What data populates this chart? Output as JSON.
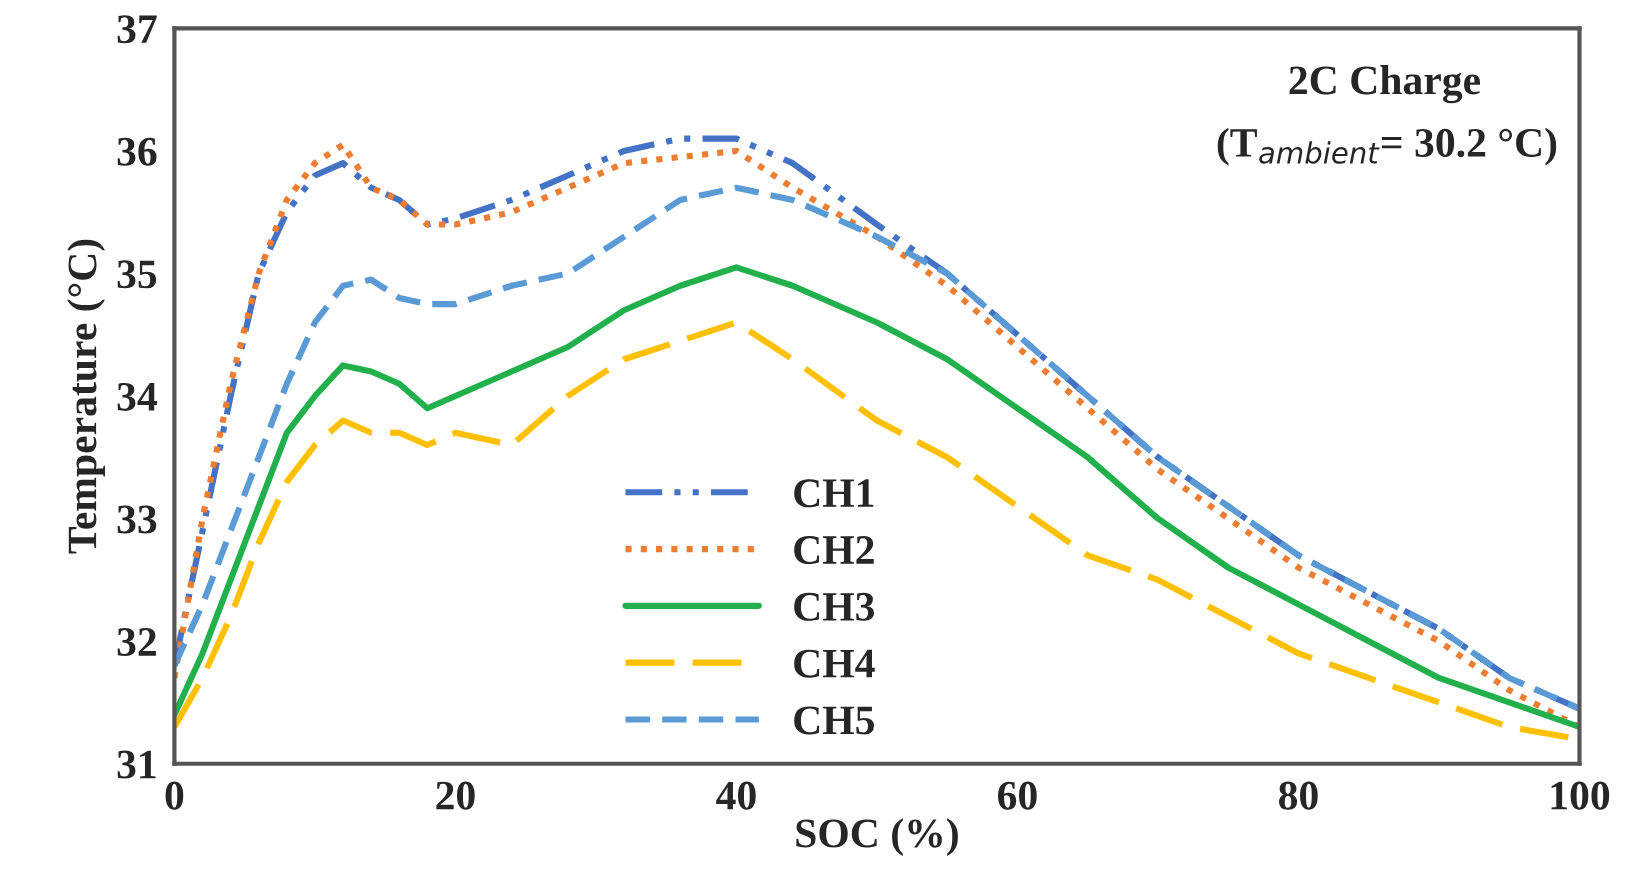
{
  "chart_data": {
    "type": "line",
    "xlabel": "SOC (%)",
    "ylabel": "Temperature (°C)",
    "annotations": [
      "2C Charge",
      "(T$_{ambient}$= 30.2 °C)"
    ],
    "x": [
      0,
      2,
      4,
      6,
      8,
      10,
      12,
      14,
      16,
      18,
      20,
      24,
      28,
      32,
      36,
      40,
      44,
      50,
      55,
      60,
      65,
      70,
      75,
      80,
      85,
      90,
      95,
      100
    ],
    "series": [
      {
        "name": "CH1",
        "color": "#4472c4",
        "line_style": "dashdot",
        "values": [
          31.8,
          32.9,
          34.0,
          35.0,
          35.5,
          35.8,
          35.9,
          35.7,
          35.6,
          35.4,
          35.45,
          35.6,
          35.8,
          36.0,
          36.1,
          36.1,
          35.9,
          35.4,
          35.0,
          34.5,
          34.0,
          33.5,
          33.1,
          32.7,
          32.4,
          32.1,
          31.7,
          31.45
        ]
      },
      {
        "name": "CH2",
        "color": "#ed7d31",
        "line_style": "dotted",
        "values": [
          31.7,
          33.0,
          34.1,
          35.0,
          35.6,
          35.9,
          36.05,
          35.7,
          35.6,
          35.4,
          35.4,
          35.5,
          35.7,
          35.9,
          35.95,
          36.0,
          35.7,
          35.3,
          34.9,
          34.4,
          33.9,
          33.4,
          33.0,
          32.6,
          32.3,
          32.0,
          31.6,
          31.3
        ]
      },
      {
        "name": "CH3",
        "color": "#22b04c",
        "line_style": "solid",
        "values": [
          31.4,
          31.9,
          32.5,
          33.1,
          33.7,
          34.0,
          34.25,
          34.2,
          34.1,
          33.9,
          34.0,
          34.2,
          34.4,
          34.7,
          34.9,
          35.05,
          34.9,
          34.6,
          34.3,
          33.9,
          33.5,
          33.0,
          32.6,
          32.3,
          32.0,
          31.7,
          31.5,
          31.3
        ]
      },
      {
        "name": "CH4",
        "color": "#ffc000",
        "line_style": "longdash",
        "values": [
          31.3,
          31.7,
          32.2,
          32.8,
          33.3,
          33.6,
          33.8,
          33.7,
          33.7,
          33.6,
          33.7,
          33.6,
          34.0,
          34.3,
          34.45,
          34.6,
          34.3,
          33.8,
          33.5,
          33.1,
          32.7,
          32.5,
          32.2,
          31.9,
          31.7,
          31.5,
          31.3,
          31.2
        ]
      },
      {
        "name": "CH5",
        "color": "#5b9bd5",
        "line_style": "dashed",
        "values": [
          31.8,
          32.3,
          32.9,
          33.5,
          34.1,
          34.6,
          34.9,
          34.95,
          34.8,
          34.75,
          34.75,
          34.9,
          35.0,
          35.3,
          35.6,
          35.7,
          35.6,
          35.3,
          35.0,
          34.5,
          34.0,
          33.5,
          33.1,
          32.7,
          32.4,
          32.1,
          31.7,
          31.45
        ]
      }
    ],
    "xlim": [
      0,
      100
    ],
    "xticks": [
      0,
      20,
      40,
      60,
      80,
      100
    ],
    "ylim": [
      31,
      37
    ],
    "yticks": [
      31,
      32,
      33,
      34,
      35,
      36,
      37
    ],
    "grid": false,
    "legend": "bottom",
    "marker": "none"
  }
}
